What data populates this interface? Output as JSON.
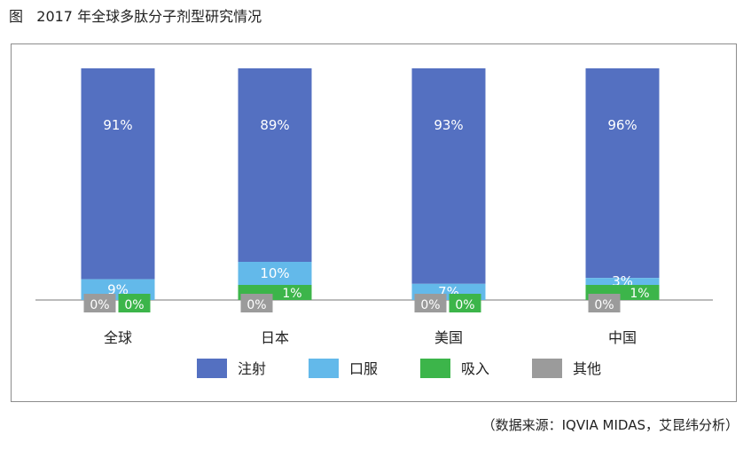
{
  "figure": {
    "title": "图   2017 年全球多肽分子剂型研究情况",
    "source": "（数据来源：IQVIA MIDAS，艾昆纬分析）"
  },
  "chart_data": {
    "type": "bar",
    "stacked": true,
    "categories": [
      "全球",
      "日本",
      "美国",
      "中国"
    ],
    "series": [
      {
        "name": "注射",
        "values": [
          91,
          89,
          93,
          96
        ],
        "labels": [
          "91%",
          "89%",
          "93%",
          "96%"
        ],
        "color": "#5470c1"
      },
      {
        "name": "口服",
        "values": [
          9,
          10,
          7,
          3
        ],
        "labels": [
          "9%",
          "10%",
          "7%",
          "3%"
        ],
        "color": "#63b9ea"
      },
      {
        "name": "吸入",
        "values": [
          0,
          1,
          0,
          1
        ],
        "labels": [
          "0%",
          "1%",
          "0%",
          "1%"
        ],
        "color": "#3cb54a"
      },
      {
        "name": "其他",
        "values": [
          0,
          0,
          0,
          0
        ],
        "labels": [
          "0%",
          "0%",
          "0%",
          "0%"
        ],
        "color": "#9b9b9b"
      }
    ],
    "legend_position": "bottom",
    "grid": false
  }
}
